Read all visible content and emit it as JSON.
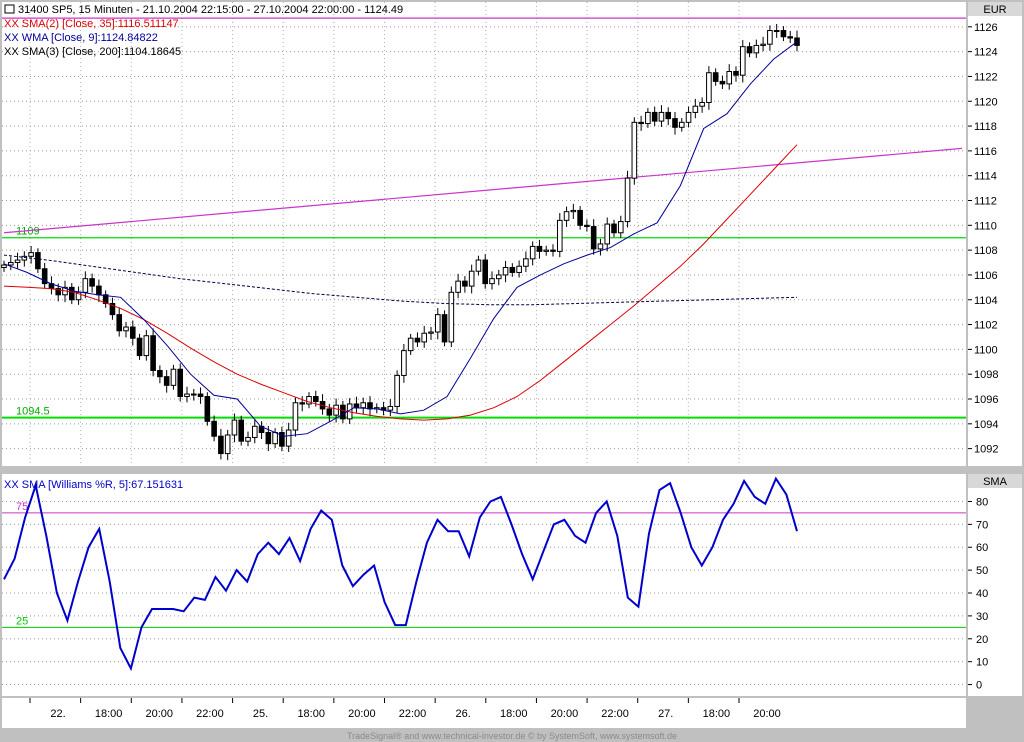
{
  "header": {
    "title_line": "31400  SP5, 15 Minuten - 21.10.2004 22:15:00 - 27.10.2004 22:00:00 - 1124.49",
    "sma35_label": "XX SMA(2) [Close, 35]:1116.511147",
    "wma9_label": "XX WMA [Close, 9]:1124.84822",
    "sma200_label": "XX SMA(3) [Close, 200]:1104.18645",
    "currency": "EUR"
  },
  "lower_panel": {
    "label": "XX SMA [Williams %R, 5]:67.151631",
    "axis_title": "SMA"
  },
  "footer": {
    "credit": "TradeSignal® and www.technical-investor.de © by  SystemSoft, www.systemsoft.de"
  },
  "colors": {
    "background": "#ffffff",
    "frame": "#c0c0c0",
    "candle": "#000000",
    "sma35": "#dd0000",
    "wma9": "#000099",
    "sma200": "#000044",
    "trendline": "#cc33cc",
    "support": "#00dd00",
    "williams": "#0000cc",
    "level75": "#cc33cc",
    "level25": "#00cc00"
  },
  "chart_data": [
    {
      "type": "line",
      "subtype": "candlestick-price-chart",
      "y_ticks": [
        1092,
        1094,
        1096,
        1098,
        1100,
        1102,
        1104,
        1106,
        1108,
        1110,
        1112,
        1114,
        1116,
        1118,
        1120,
        1122,
        1124,
        1126
      ],
      "ylim": [
        1090.6,
        1128.0
      ],
      "x_tick_labels": [
        "22.",
        "18:00",
        "20:00",
        "22:00",
        "25.",
        "18:00",
        "20:00",
        "22:00",
        "26.",
        "18:00",
        "20:00",
        "22:00",
        "27.",
        "18:00",
        "20:00"
      ],
      "horizontal_lines": [
        {
          "value": 1109,
          "label": "1109"
        },
        {
          "value": 1094.5,
          "label": "1094.5"
        },
        {
          "value": 1126.7,
          "label": ""
        }
      ],
      "trendline": {
        "start": 1109.4,
        "end": 1116.2
      },
      "close_series": [
        1106.8,
        1107.0,
        1107.2,
        1107.5,
        1107.8,
        1106.5,
        1105.3,
        1104.9,
        1104.4,
        1105.0,
        1104.0,
        1104.6,
        1105.7,
        1105.1,
        1104.4,
        1103.7,
        1102.8,
        1101.5,
        1101.8,
        1100.9,
        1099.5,
        1101.1,
        1098.3,
        1097.8,
        1097.1,
        1098.4,
        1096.2,
        1096.4,
        1096.4,
        1096.2,
        1094.2,
        1093.0,
        1091.6,
        1093.1,
        1094.3,
        1092.6,
        1092.9,
        1093.8,
        1093.3,
        1092.4,
        1093.3,
        1092.2,
        1093.5,
        1095.7,
        1095.6,
        1096.2,
        1095.8,
        1095.2,
        1094.7,
        1095.5,
        1094.4,
        1095.6,
        1095.3,
        1095.7,
        1095.2,
        1095.3,
        1095.1,
        1095.4,
        1097.9,
        1099.9,
        1100.9,
        1100.6,
        1101.3,
        1101.4,
        1102.8,
        1100.6,
        1104.6,
        1105.5,
        1105.1,
        1106.3,
        1107.2,
        1105.3,
        1105.7,
        1106.0,
        1106.6,
        1106.2,
        1106.7,
        1107.3,
        1108.3,
        1107.9,
        1108.0,
        1107.9,
        1110.4,
        1111.1,
        1111.2,
        1110.0,
        1109.9,
        1108.1,
        1108.5,
        1110.1,
        1109.4,
        1110.3,
        1113.8,
        1118.3,
        1118.2,
        1119.1,
        1118.4,
        1119.1,
        1118.6,
        1117.9,
        1118.3,
        1119.1,
        1119.6,
        1119.9,
        1122.3,
        1121.6,
        1121.4,
        1122.4,
        1122.1,
        1124.4,
        1123.9,
        1124.5,
        1124.6,
        1125.7,
        1125.7,
        1125.2,
        1125.1,
        1124.5
      ],
      "series": [
        {
          "name": "XX SMA(2) [Close, 35]",
          "values": [
            1105.1,
            1105.0,
            1104.9,
            1104.6,
            1104.0,
            1103.3,
            1102.4,
            1101.3,
            1100.1,
            1099.0,
            1098.0,
            1097.2,
            1096.5,
            1095.8,
            1095.3,
            1094.9,
            1094.6,
            1094.4,
            1094.3,
            1094.4,
            1094.7,
            1095.3,
            1096.2,
            1097.5,
            1099.0,
            1100.5,
            1102.0,
            1103.5,
            1105.1,
            1106.7,
            1108.5,
            1110.5,
            1112.5,
            1114.5,
            1116.5
          ]
        },
        {
          "name": "XX WMA [Close, 9]",
          "values": [
            1106.9,
            1106.2,
            1105.3,
            1104.7,
            1104.4,
            1104.2,
            1102.4,
            1100.3,
            1098.0,
            1096.3,
            1096.0,
            1093.8,
            1093.0,
            1093.2,
            1094.2,
            1095.3,
            1095.2,
            1094.8,
            1095.1,
            1096.2,
            1099.3,
            1102.5,
            1105.0,
            1106.0,
            1106.9,
            1107.6,
            1108.2,
            1109.3,
            1110.2,
            1113.2,
            1117.8,
            1119.0,
            1121.4,
            1123.4,
            1124.8
          ]
        },
        {
          "name": "XX SMA(3) [Close, 200]",
          "values": [
            1107.6,
            1107.2,
            1106.7,
            1106.2,
            1105.7,
            1105.3,
            1104.9,
            1104.5,
            1104.2,
            1103.9,
            1103.7,
            1103.6,
            1103.6,
            1103.7,
            1103.8,
            1103.9,
            1104.0,
            1104.1,
            1104.2
          ]
        }
      ]
    },
    {
      "type": "line",
      "title": "XX SMA [Williams %R, 5]:67.151631",
      "y_ticks": [
        0,
        10,
        20,
        30,
        40,
        50,
        60,
        70,
        80
      ],
      "ylim": [
        -5,
        92
      ],
      "levels": [
        {
          "value": 75,
          "label": "75"
        },
        {
          "value": 25,
          "label": "25"
        }
      ],
      "series": [
        {
          "name": "XX SMA [Williams %R, 5]",
          "values": [
            46,
            55,
            73,
            87,
            65,
            40,
            28,
            45,
            60,
            68,
            45,
            16,
            7,
            25,
            33,
            33,
            33,
            32,
            38,
            37,
            47,
            41,
            50,
            45,
            57,
            62,
            57,
            64,
            54,
            68,
            76,
            72,
            52,
            43,
            48,
            52,
            36,
            26,
            26,
            45,
            62,
            72,
            67,
            67,
            56,
            73,
            80,
            82,
            70,
            57,
            46,
            58,
            70,
            72,
            65,
            62,
            75,
            80,
            65,
            38,
            34,
            66,
            85,
            88,
            75,
            60,
            52,
            60,
            72,
            79,
            89,
            82,
            79,
            90,
            83,
            67
          ]
        }
      ]
    }
  ]
}
